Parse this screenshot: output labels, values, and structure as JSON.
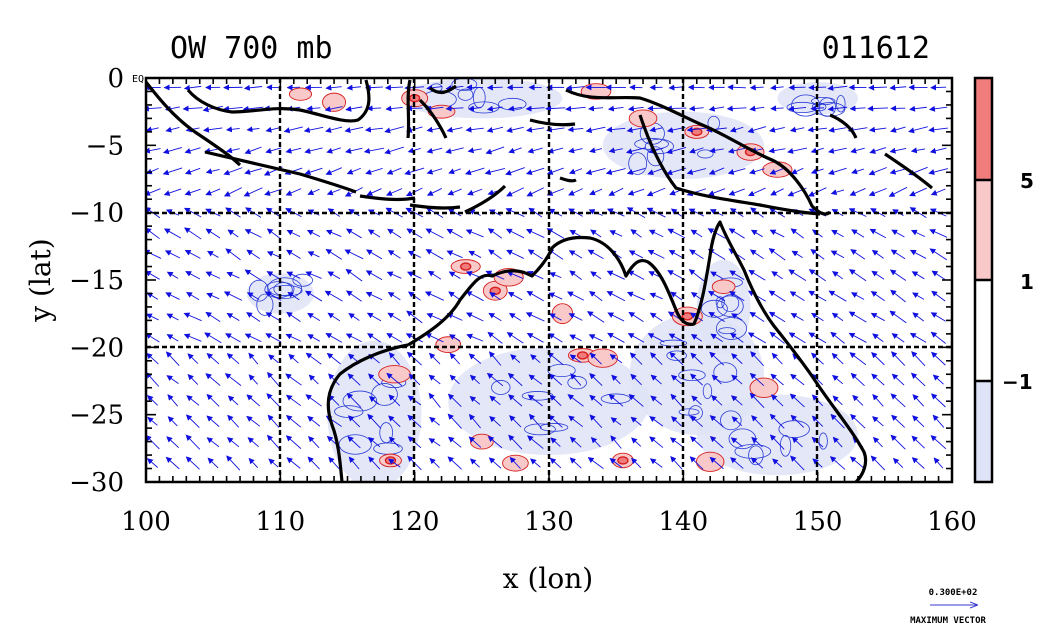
{
  "chart_data": {
    "type": "contour",
    "title_left": "OW 700 mb",
    "title_right": "011612",
    "xlabel": "x (lon)",
    "ylabel": "y (lat)",
    "xlim": [
      100,
      160
    ],
    "ylim": [
      -30,
      0
    ],
    "x_ticks": [
      100,
      110,
      120,
      130,
      140,
      150,
      160
    ],
    "y_ticks": [
      0,
      -5,
      -10,
      -15,
      -20,
      -25,
      -30
    ],
    "y_tick_labels": [
      "0",
      "−5",
      "−10",
      "−15",
      "−20",
      "−25",
      "−30"
    ],
    "y_top_suffix": "EQ",
    "grid_x": [
      110,
      120,
      130,
      140,
      150
    ],
    "grid_y": [
      -10,
      -20
    ],
    "colorbar": {
      "levels": [
        -1,
        1,
        5
      ],
      "labels": [
        "−1",
        "1",
        "5"
      ],
      "colors": [
        "#dfe3f7",
        "#ffffff",
        "#f9c8c8",
        "#f07c7c"
      ]
    },
    "vector_legend": {
      "value_label": "0.300E+02",
      "caption": "MAXIMUM VECTOR"
    },
    "positive_blobs": [
      {
        "lon": 126.0,
        "lat": -15.8,
        "level": 5
      },
      {
        "lon": 127.0,
        "lat": -14.8,
        "level": 1
      },
      {
        "lon": 132.5,
        "lat": -20.6,
        "level": 5
      },
      {
        "lon": 140.3,
        "lat": -17.7,
        "level": 5
      },
      {
        "lon": 123.8,
        "lat": -14.0,
        "level": 5
      },
      {
        "lon": 118.2,
        "lat": -28.4,
        "level": 5
      },
      {
        "lon": 125.0,
        "lat": -27.0,
        "level": 1
      },
      {
        "lon": 127.5,
        "lat": -28.6,
        "level": 1
      },
      {
        "lon": 135.5,
        "lat": -28.4,
        "level": 5
      },
      {
        "lon": 142.0,
        "lat": -28.5,
        "level": 1
      },
      {
        "lon": 111.5,
        "lat": -1.2,
        "level": 1
      },
      {
        "lon": 114.0,
        "lat": -1.8,
        "level": 1
      },
      {
        "lon": 120.0,
        "lat": -1.5,
        "level": 5
      },
      {
        "lon": 122.0,
        "lat": -2.5,
        "level": 1
      },
      {
        "lon": 133.5,
        "lat": -1.0,
        "level": 1
      },
      {
        "lon": 137.0,
        "lat": -3.0,
        "level": 1
      },
      {
        "lon": 141.0,
        "lat": -4.0,
        "level": 5
      },
      {
        "lon": 145.0,
        "lat": -5.5,
        "level": 5
      },
      {
        "lon": 147.0,
        "lat": -6.8,
        "level": 1
      },
      {
        "lon": 131.0,
        "lat": -17.5,
        "level": 1
      },
      {
        "lon": 134.0,
        "lat": -20.8,
        "level": 1
      },
      {
        "lon": 143.0,
        "lat": -15.5,
        "level": 1
      },
      {
        "lon": 146.0,
        "lat": -23.0,
        "level": 1
      },
      {
        "lon": 122.5,
        "lat": -19.8,
        "level": 1
      },
      {
        "lon": 118.5,
        "lat": -22.0,
        "level": 1
      }
    ],
    "negative_regions": [
      {
        "lon": 117.0,
        "lat": -25.0,
        "rx": 3.5,
        "ry": 5.5
      },
      {
        "lon": 130.0,
        "lat": -24.0,
        "rx": 7.5,
        "ry": 4.0
      },
      {
        "lon": 141.0,
        "lat": -22.0,
        "rx": 5.0,
        "ry": 4.5
      },
      {
        "lon": 147.0,
        "lat": -26.5,
        "rx": 6.0,
        "ry": 3.0
      },
      {
        "lon": 143.0,
        "lat": -17.0,
        "rx": 2.0,
        "ry": 3.5
      },
      {
        "lon": 125.0,
        "lat": -1.5,
        "rx": 6.0,
        "ry": 1.5
      },
      {
        "lon": 140.0,
        "lat": -5.0,
        "rx": 6.0,
        "ry": 2.5
      },
      {
        "lon": 110.0,
        "lat": -16.0,
        "rx": 2.5,
        "ry": 1.5
      },
      {
        "lon": 150.0,
        "lat": -1.5,
        "rx": 3.0,
        "ry": 1.2
      }
    ]
  }
}
